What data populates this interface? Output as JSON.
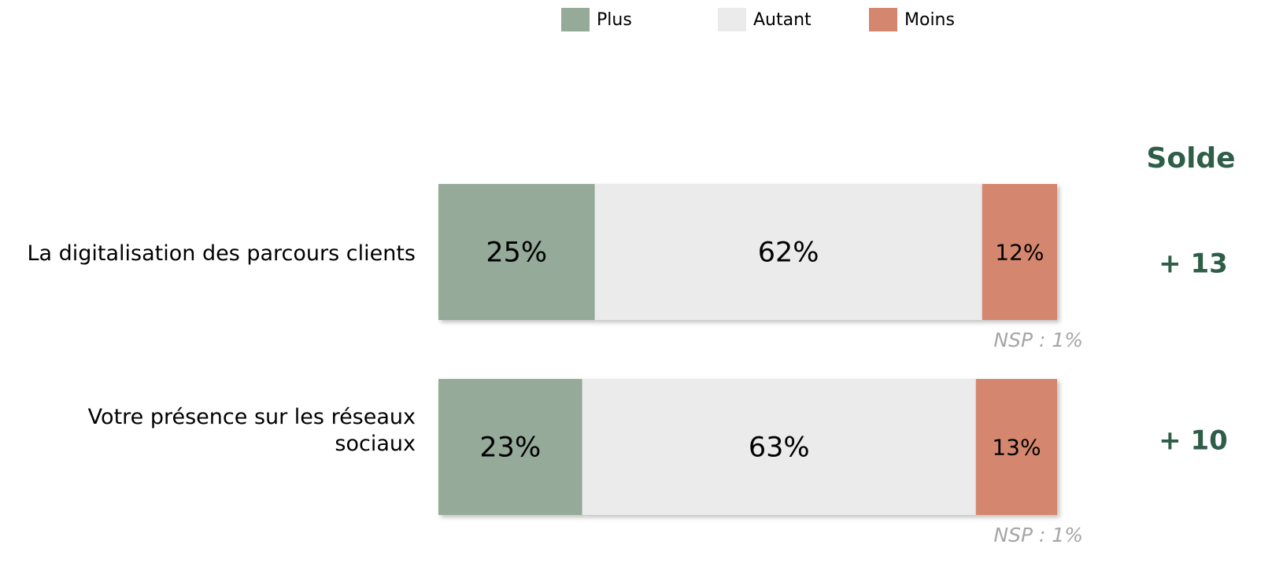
{
  "chart_data": {
    "type": "stacked-bar-horizontal",
    "categories": [
      "La digitalisation des parcours clients",
      "Votre présence sur les réseaux sociaux"
    ],
    "series": [
      {
        "name": "Plus",
        "color": "#95aa98",
        "values": [
          25,
          23
        ],
        "value_labels": [
          "25%",
          "23%"
        ]
      },
      {
        "name": "Autant",
        "color": "#ebebeb",
        "values": [
          62,
          63
        ],
        "value_labels": [
          "62%",
          "63%"
        ]
      },
      {
        "name": "Moins",
        "color": "#d4866e",
        "values": [
          12,
          13
        ],
        "value_labels": [
          "12%",
          "13%"
        ]
      }
    ],
    "xlim": [
      0,
      100
    ],
    "notes": [
      "NSP : 1%",
      "NSP : 1%"
    ],
    "solde": {
      "title": "Solde",
      "values": [
        13,
        10
      ],
      "value_labels": [
        "+ 13",
        "+ 10"
      ]
    }
  }
}
